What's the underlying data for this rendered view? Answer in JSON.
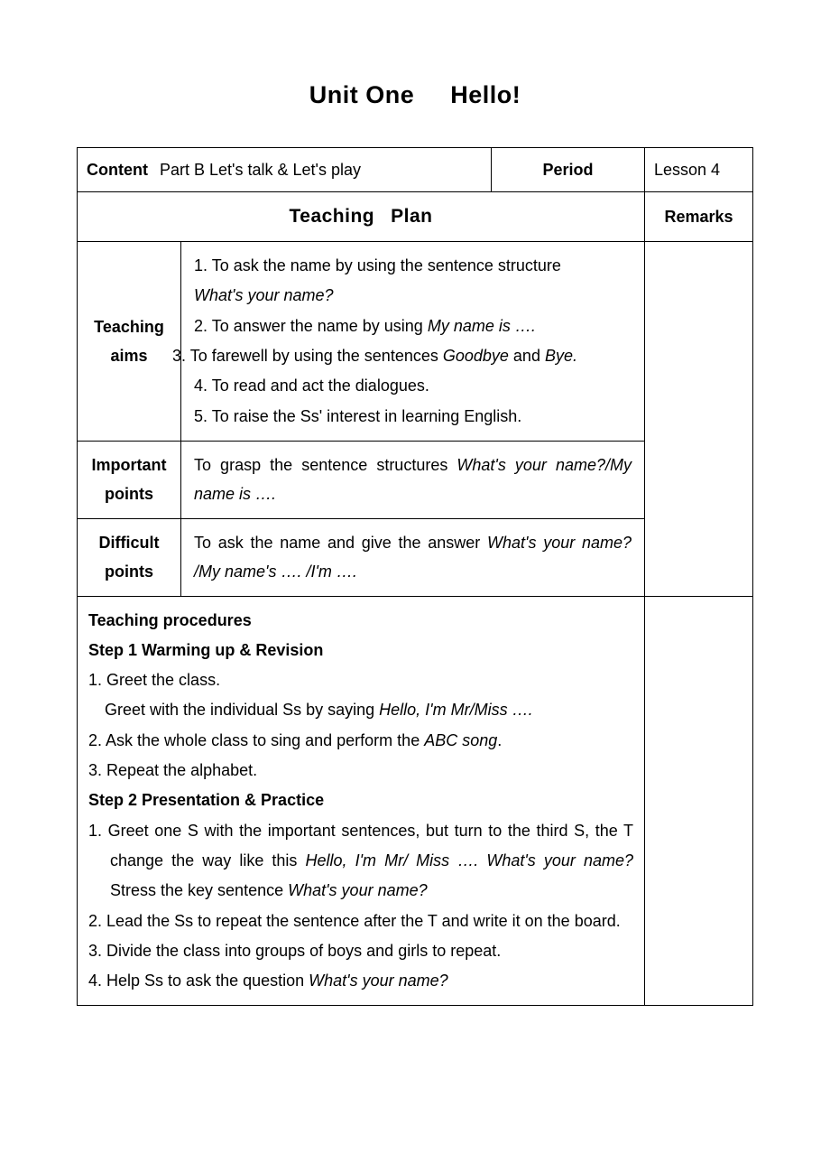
{
  "title": {
    "left": "Unit One",
    "right": "Hello!"
  },
  "header": {
    "content_label": "Content",
    "content_value": "Part B   Let's talk & Let's play",
    "period_label": "Period",
    "period_value": "Lesson 4"
  },
  "plan_header": {
    "left": "Teaching",
    "right": "Plan"
  },
  "remarks_label": "Remarks",
  "rows": {
    "aims": {
      "label": "Teaching aims",
      "items": {
        "l1": "1. To ask the name by using the sentence structure",
        "l1sub": "What's your name?",
        "l2a": "2. To answer the name by using ",
        "l2i": "My name is ….",
        "l3a": "3. To farewell by using the sentences ",
        "l3i1": "Goodbye",
        "l3mid": " and ",
        "l3i2": "Bye.",
        "l4": "4. To read and act the dialogues.",
        "l5": "5. To raise the Ss' interest in learning English."
      }
    },
    "important": {
      "label": "Important points",
      "text_a": "To grasp the sentence structures ",
      "text_i": "What's your name?/My name is …."
    },
    "difficult": {
      "label": "Difficult points",
      "text_a": "To ask the name and give the answer ",
      "text_i": "What's your name? /My name's …. /I'm …."
    },
    "procedures": {
      "h1": "Teaching procedures",
      "step1_h": "Step 1 Warming up & Revision",
      "s1_1": "1. Greet the class.",
      "s1_1sub_a": "Greet with the individual Ss by saying ",
      "s1_1sub_i": "Hello, I'm Mr/Miss ….",
      "s1_2a": "2. Ask the whole class to sing and perform the ",
      "s1_2i": "ABC song",
      "s1_2b": ".",
      "s1_3": "3. Repeat the alphabet.",
      "step2_h": "Step 2 Presentation & Practice",
      "s2_1a": "1. Greet one S with the important sentences, but turn to the third S, the T change the way like this ",
      "s2_1i1": "Hello, I'm Mr/ Miss …. What's your name?",
      "s2_1mid": " Stress the key sentence ",
      "s2_1i2": "What's your name?",
      "s2_2": "2. Lead the Ss to repeat the sentence after the T and write it on the board.",
      "s2_3": "3. Divide the class into groups of boys and girls to repeat.",
      "s2_4a": "4. Help Ss to ask the question ",
      "s2_4i": "What's your name?"
    }
  }
}
